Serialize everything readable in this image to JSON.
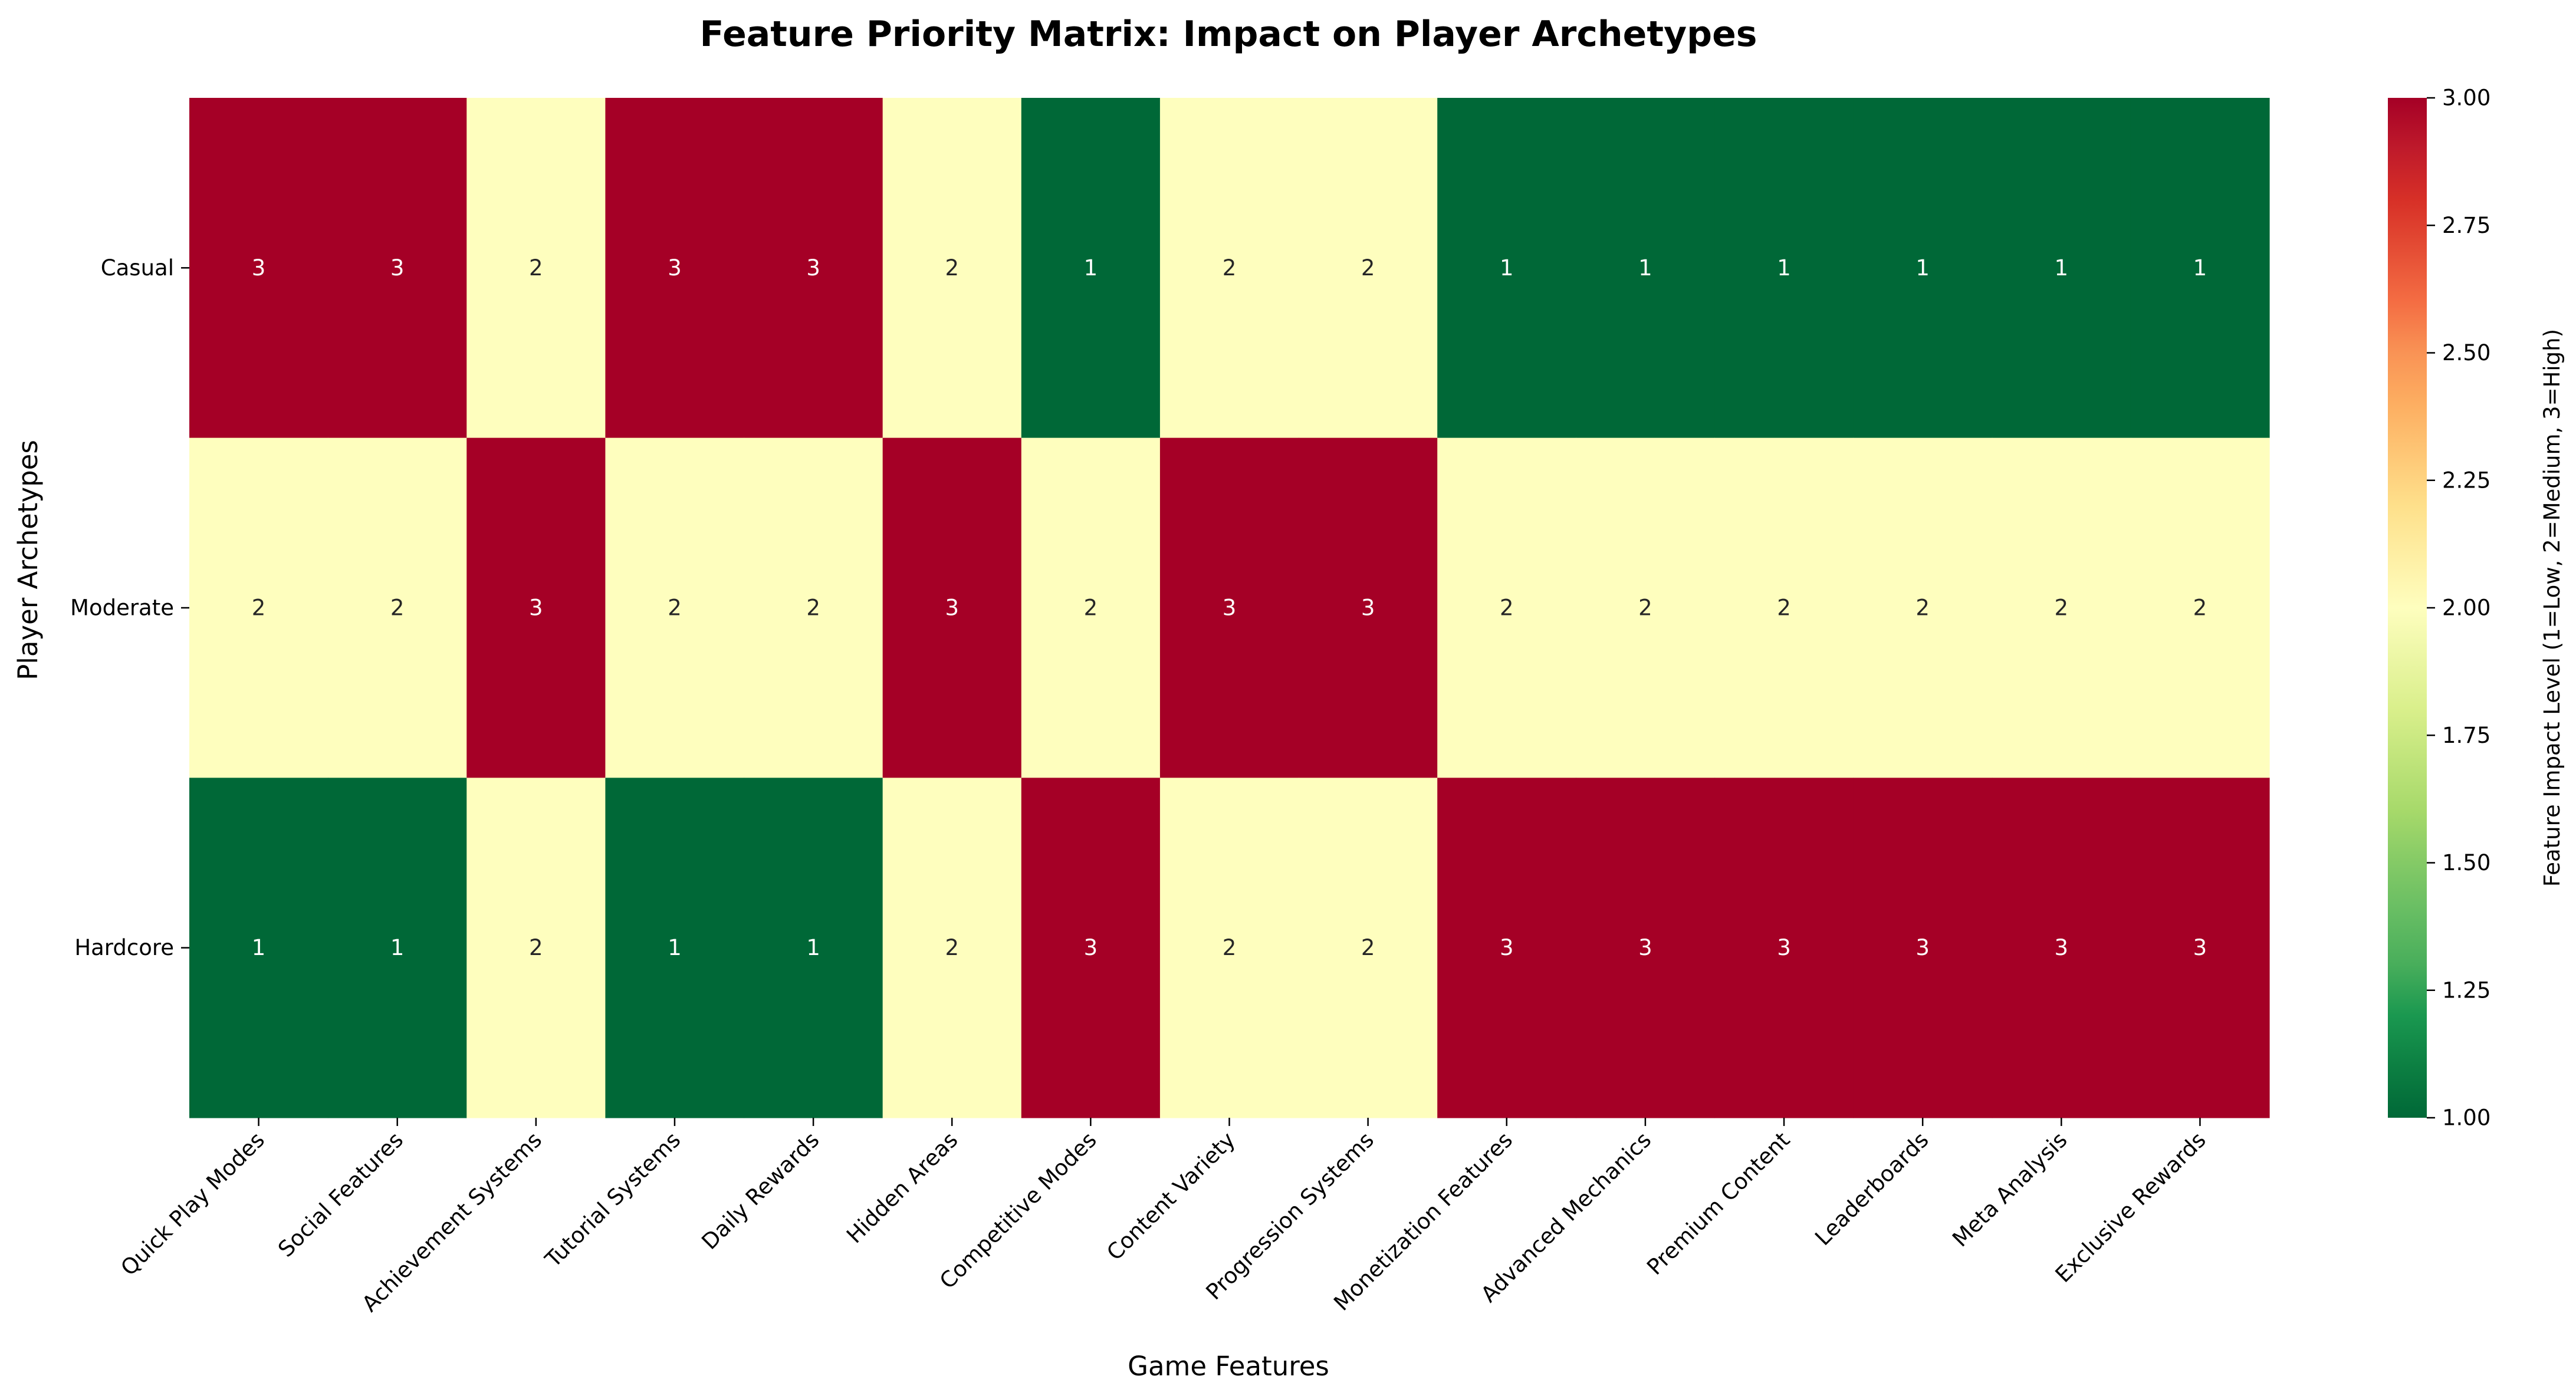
{
  "chart_data": {
    "type": "heatmap",
    "title": "Feature Priority Matrix: Impact on Player Archetypes",
    "xlabel": "Game Features",
    "ylabel": "Player Archetypes",
    "rows": [
      "Casual",
      "Moderate",
      "Hardcore"
    ],
    "columns": [
      "Quick Play Modes",
      "Social Features",
      "Achievement Systems",
      "Tutorial Systems",
      "Daily Rewards",
      "Hidden Areas",
      "Competitive Modes",
      "Content Variety",
      "Progression Systems",
      "Monetization Features",
      "Advanced Mechanics",
      "Premium Content",
      "Leaderboards",
      "Meta Analysis",
      "Exclusive Rewards"
    ],
    "values": [
      [
        3,
        3,
        2,
        3,
        3,
        2,
        1,
        2,
        2,
        1,
        1,
        1,
        1,
        1,
        1
      ],
      [
        2,
        2,
        3,
        2,
        2,
        3,
        2,
        3,
        3,
        2,
        2,
        2,
        2,
        2,
        2
      ],
      [
        1,
        1,
        2,
        1,
        1,
        2,
        3,
        2,
        2,
        3,
        3,
        3,
        3,
        3,
        3
      ]
    ],
    "annotations": true,
    "colormap": "RdYlGn_r",
    "colors": {
      "low": "#006837",
      "mid": "#fefebe",
      "high": "#a50026"
    },
    "colorbar": {
      "label": "Feature Impact Level (1=Low, 2=Medium, 3=High)",
      "range": [
        1.0,
        3.0
      ],
      "ticks": [
        "1.00",
        "1.25",
        "1.50",
        "1.75",
        "2.00",
        "2.25",
        "2.50",
        "2.75",
        "3.00"
      ]
    }
  }
}
